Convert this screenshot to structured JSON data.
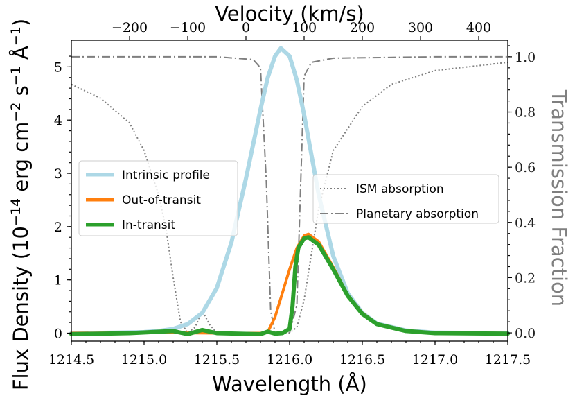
{
  "chart_data": {
    "type": "line",
    "xlabel": "Wavelength (Å)",
    "x2label": "Velocity (km/s)",
    "ylabel": "Flux Density (10−14 erg cm−2 s−1 Å−1)",
    "ylabel_parts": {
      "a": "Flux Density (10",
      "e1": "−14",
      "b": " erg cm",
      "e2": "−2",
      "c": " s",
      "e3": "−1",
      "d": " Å",
      "e4": "−1",
      "f": ")"
    },
    "y2label": "Transmission Fraction",
    "xlim": [
      1214.5,
      1217.5
    ],
    "ylim": [
      -0.15,
      5.5
    ],
    "y2lim": [
      -0.03,
      1.06
    ],
    "x2lim": [
      -300,
      450
    ],
    "x_ticks": [
      "1214.5",
      "1215.0",
      "1215.5",
      "1216.0",
      "1216.5",
      "1217.0",
      "1217.5"
    ],
    "x_tick_values": [
      1214.5,
      1215.0,
      1215.5,
      1216.0,
      1216.5,
      1217.0,
      1217.5
    ],
    "x2_ticks": [
      "−200",
      "−100",
      "0",
      "100",
      "200",
      "300",
      "400"
    ],
    "x2_tick_values": [
      -200,
      -100,
      0,
      100,
      200,
      300,
      400
    ],
    "y_ticks": [
      "0",
      "1",
      "2",
      "3",
      "4",
      "5"
    ],
    "y_tick_values": [
      0,
      1,
      2,
      3,
      4,
      5
    ],
    "y2_ticks": [
      "0.0",
      "0.2",
      "0.4",
      "0.6",
      "0.8",
      "1.0"
    ],
    "y2_tick_values": [
      0.0,
      0.2,
      0.4,
      0.6,
      0.8,
      1.0
    ],
    "series": [
      {
        "name": "Intrinsic profile",
        "axis": "left",
        "color": "#add8e6",
        "x": [
          1214.5,
          1214.8,
          1215.0,
          1215.1,
          1215.2,
          1215.3,
          1215.4,
          1215.5,
          1215.6,
          1215.7,
          1215.8,
          1215.85,
          1215.9,
          1215.94,
          1216.0,
          1216.05,
          1216.1,
          1216.15,
          1216.2,
          1216.3,
          1216.4,
          1216.5,
          1216.6,
          1216.8,
          1217.0,
          1217.5
        ],
        "y": [
          0.0,
          0.01,
          0.02,
          0.04,
          0.08,
          0.17,
          0.38,
          0.85,
          1.7,
          2.9,
          4.2,
          4.8,
          5.2,
          5.35,
          5.2,
          4.75,
          4.1,
          3.35,
          2.6,
          1.45,
          0.75,
          0.38,
          0.18,
          0.05,
          0.01,
          0.0
        ]
      },
      {
        "name": "Out-of-transit",
        "axis": "left",
        "color": "#ff7f0e",
        "x": [
          1214.5,
          1215.0,
          1215.5,
          1215.8,
          1215.85,
          1215.9,
          1215.95,
          1216.0,
          1216.05,
          1216.1,
          1216.13,
          1216.2,
          1216.3,
          1216.4,
          1216.5,
          1216.6,
          1216.8,
          1217.0,
          1217.5
        ],
        "y": [
          0.0,
          0.01,
          0.0,
          0.0,
          0.02,
          0.3,
          0.75,
          1.2,
          1.6,
          1.83,
          1.86,
          1.72,
          1.24,
          0.72,
          0.38,
          0.18,
          0.05,
          0.01,
          0.0
        ]
      },
      {
        "name": "In-transit",
        "axis": "left",
        "color": "#2ca02c",
        "x": [
          1214.5,
          1214.9,
          1215.2,
          1215.3,
          1215.35,
          1215.4,
          1215.5,
          1215.8,
          1215.85,
          1215.9,
          1215.95,
          1216.0,
          1216.02,
          1216.04,
          1216.06,
          1216.1,
          1216.13,
          1216.2,
          1216.3,
          1216.4,
          1216.5,
          1216.6,
          1216.8,
          1217.0,
          1217.5
        ],
        "y": [
          -0.02,
          0.0,
          0.04,
          -0.02,
          0.02,
          0.06,
          0.0,
          -0.02,
          0.03,
          -0.01,
          0.0,
          0.08,
          0.5,
          1.25,
          1.6,
          1.78,
          1.8,
          1.66,
          1.2,
          0.7,
          0.36,
          0.17,
          0.04,
          0.0,
          -0.01
        ]
      },
      {
        "name": "ISM absorption",
        "axis": "right",
        "color": "#7f7f7f",
        "dash": "dotted",
        "x": [
          1214.5,
          1214.7,
          1214.9,
          1215.0,
          1215.1,
          1215.15,
          1215.2,
          1215.25,
          1215.3,
          1215.35,
          1215.4,
          1215.45,
          1215.5,
          1215.7,
          1215.9,
          1216.0,
          1216.05,
          1216.1,
          1216.2,
          1216.3,
          1216.5,
          1216.7,
          1217.0,
          1217.5
        ],
        "y": [
          0.9,
          0.85,
          0.76,
          0.66,
          0.5,
          0.38,
          0.2,
          0.04,
          0.0,
          0.02,
          0.08,
          0.03,
          0.0,
          0.0,
          0.0,
          0.0,
          0.02,
          0.12,
          0.45,
          0.66,
          0.82,
          0.9,
          0.95,
          0.98
        ]
      },
      {
        "name": "Planetary absorption",
        "axis": "right",
        "color": "#7f7f7f",
        "dash": "dashdot",
        "x": [
          1214.5,
          1215.5,
          1215.75,
          1215.8,
          1215.84,
          1215.87,
          1215.9,
          1216.0,
          1216.05,
          1216.08,
          1216.1,
          1216.15,
          1216.3,
          1217.0,
          1217.5
        ],
        "y": [
          1.0,
          1.0,
          0.99,
          0.96,
          0.55,
          0.08,
          0.0,
          0.0,
          0.1,
          0.6,
          0.93,
          0.98,
          0.995,
          1.0,
          1.0
        ]
      }
    ],
    "legend_left": [
      "Intrinsic profile",
      "Out-of-transit",
      "In-transit"
    ],
    "legend_right": [
      "ISM absorption",
      "Planetary absorption"
    ]
  }
}
